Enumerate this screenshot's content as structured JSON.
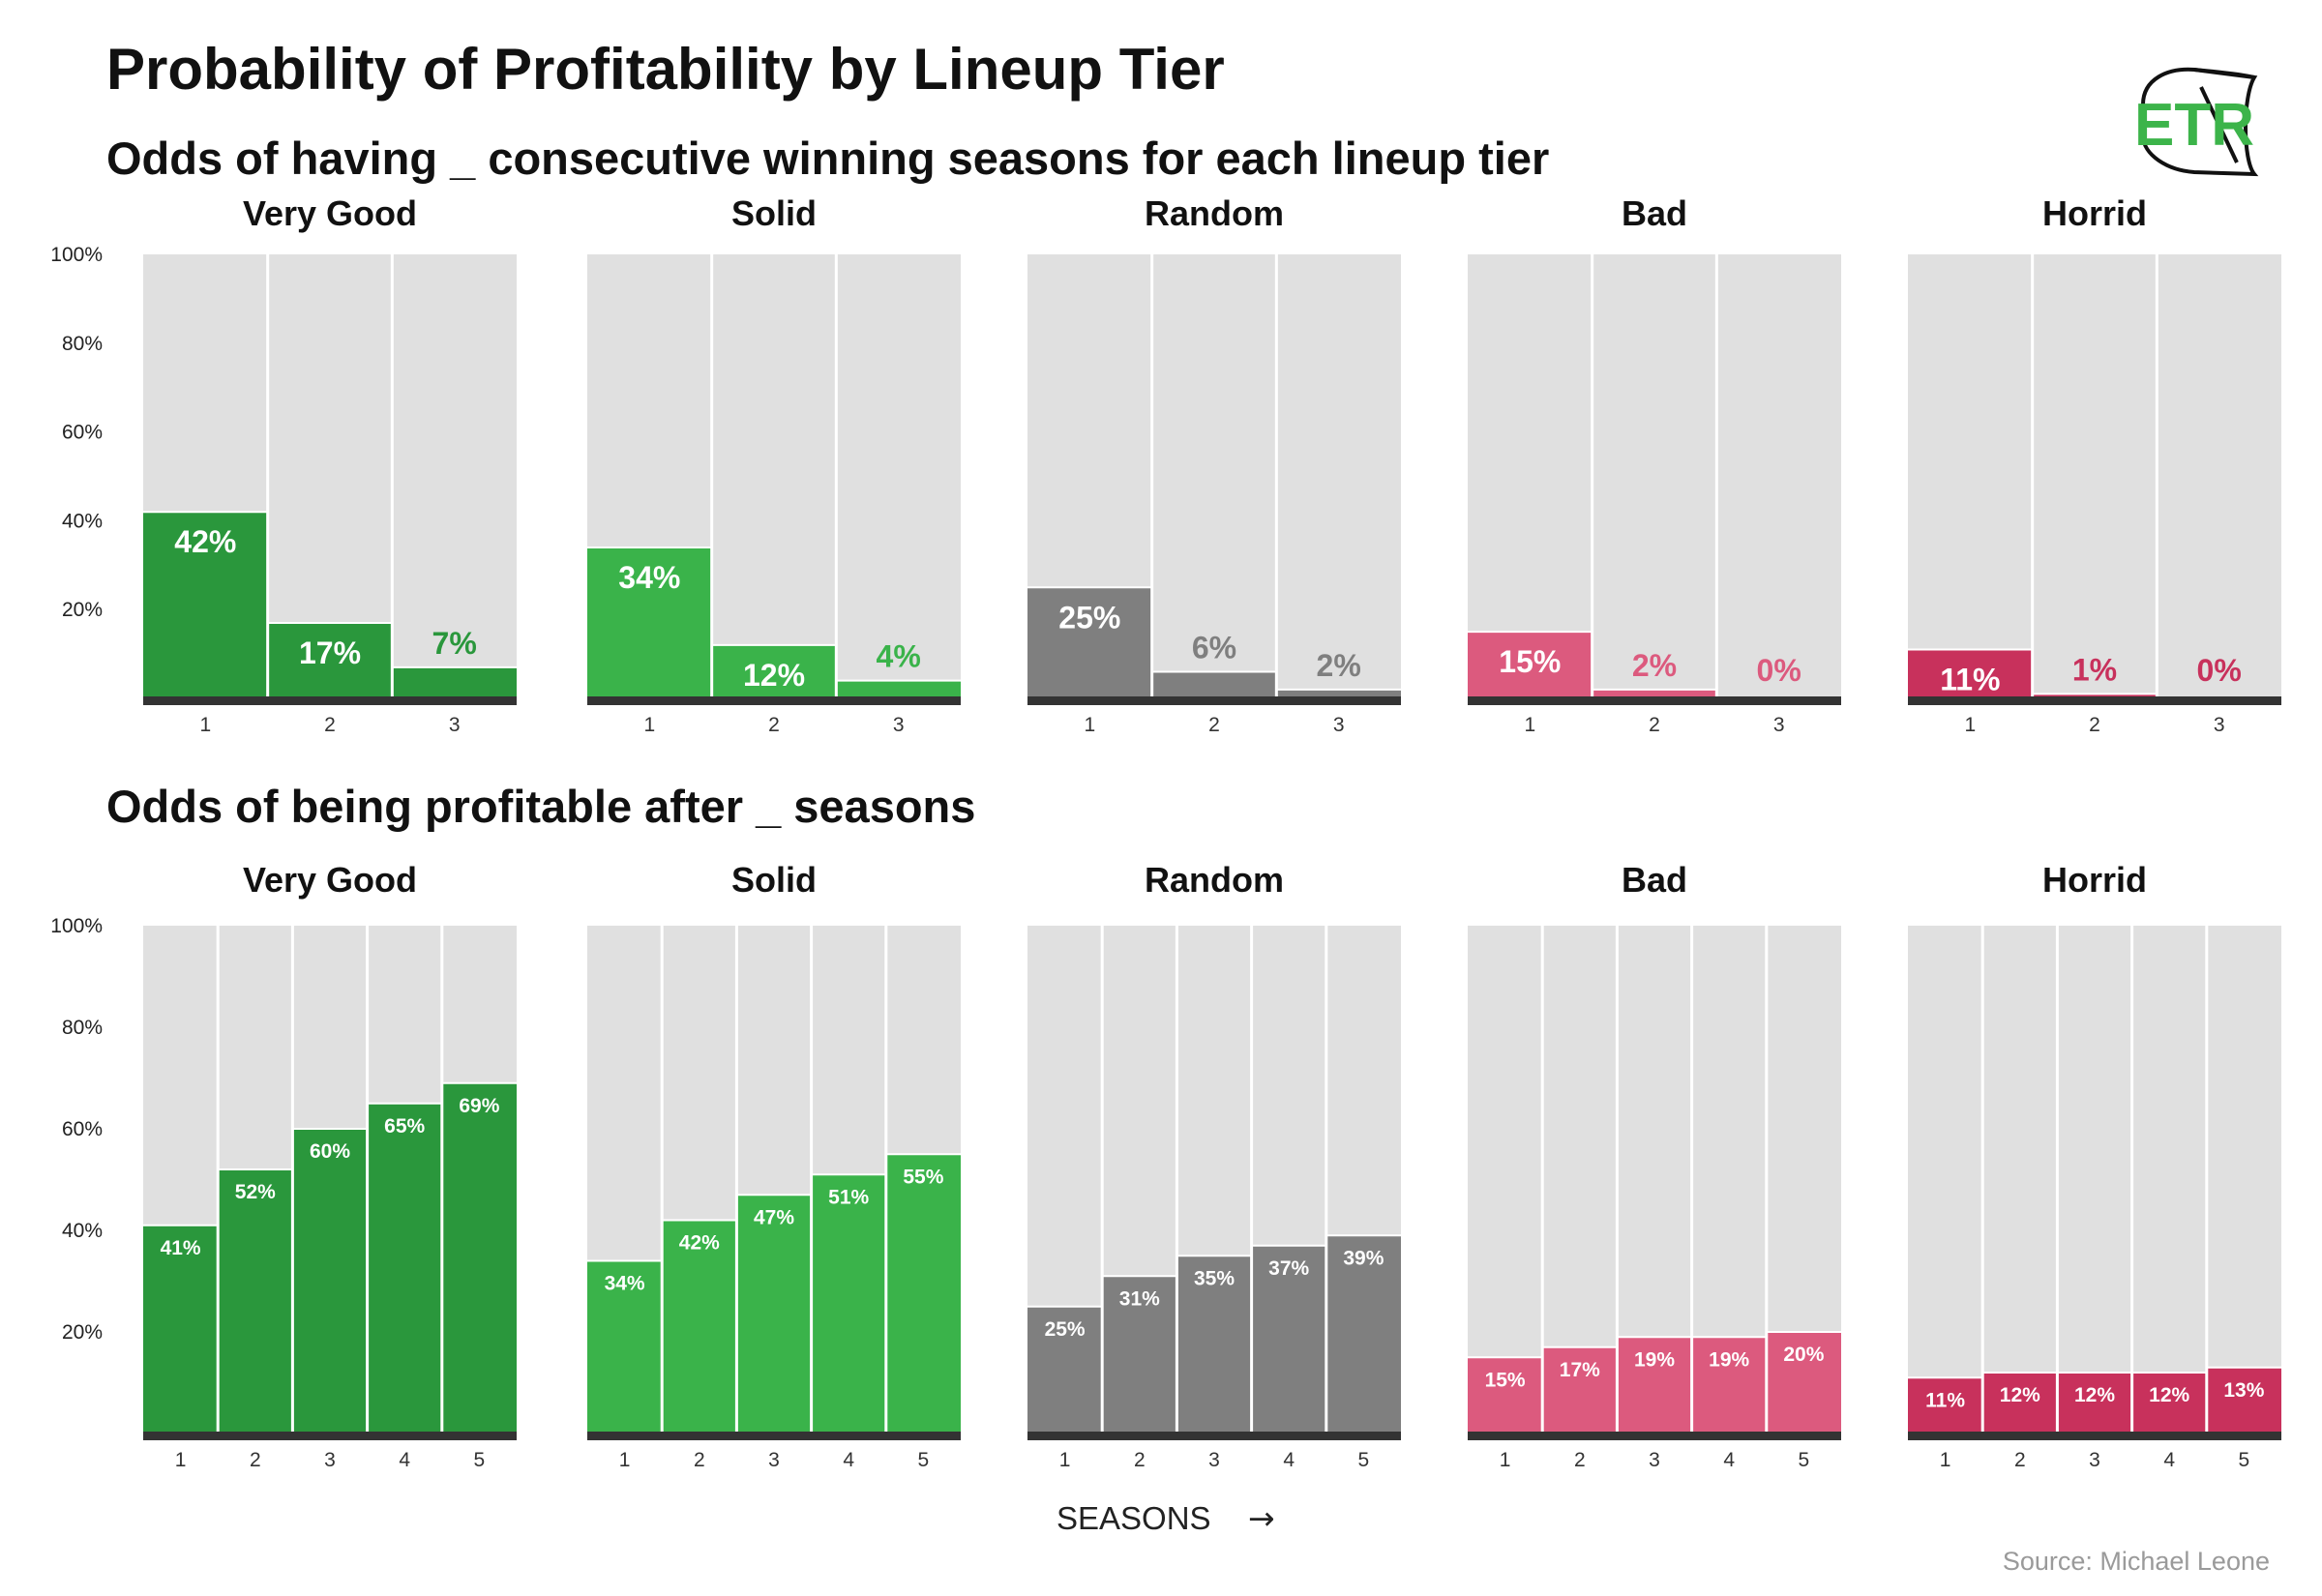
{
  "title": "Probability of Profitability by Lineup Tier",
  "source": "Source: Michael Leone",
  "logo": {
    "text": "ETR",
    "color": "#3cb44a"
  },
  "x_axis_label": "SEASONS",
  "x_axis_arrow": "→",
  "colors": {
    "Very Good": "#2a973c",
    "Solid": "#3ab34a",
    "Random": "#7f7f7f",
    "Bad": "#dc5a7e",
    "Horrid": "#c8315c",
    "background_bar": "#e0e0e0",
    "baseline": "#333333"
  },
  "chart_data": [
    {
      "type": "bar",
      "title": "Odds of having _ consecutive winning seasons for each lineup tier",
      "ylim": [
        0,
        100
      ],
      "yticks": [
        "20%",
        "40%",
        "60%",
        "80%",
        "100%"
      ],
      "categories": [
        "1",
        "2",
        "3"
      ],
      "series": [
        {
          "name": "Very Good",
          "values": [
            42,
            17,
            7
          ],
          "labels": [
            "42%",
            "17%",
            "7%"
          ]
        },
        {
          "name": "Solid",
          "values": [
            34,
            12,
            4
          ],
          "labels": [
            "34%",
            "12%",
            "4%"
          ]
        },
        {
          "name": "Random",
          "values": [
            25,
            6,
            2
          ],
          "labels": [
            "25%",
            "6%",
            "2%"
          ]
        },
        {
          "name": "Bad",
          "values": [
            15,
            2,
            0
          ],
          "labels": [
            "15%",
            "2%",
            "0%"
          ]
        },
        {
          "name": "Horrid",
          "values": [
            11,
            1,
            0
          ],
          "labels": [
            "11%",
            "1%",
            "0%"
          ]
        }
      ]
    },
    {
      "type": "bar",
      "title": "Odds of being profitable after _ seasons",
      "ylim": [
        0,
        100
      ],
      "yticks": [
        "20%",
        "40%",
        "60%",
        "80%",
        "100%"
      ],
      "categories": [
        "1",
        "2",
        "3",
        "4",
        "5"
      ],
      "series": [
        {
          "name": "Very Good",
          "values": [
            41,
            52,
            60,
            65,
            69
          ],
          "labels": [
            "41%",
            "52%",
            "60%",
            "65%",
            "69%"
          ]
        },
        {
          "name": "Solid",
          "values": [
            34,
            42,
            47,
            51,
            55
          ],
          "labels": [
            "34%",
            "42%",
            "47%",
            "51%",
            "55%"
          ]
        },
        {
          "name": "Random",
          "values": [
            25,
            31,
            35,
            37,
            39
          ],
          "labels": [
            "25%",
            "31%",
            "35%",
            "37%",
            "39%"
          ]
        },
        {
          "name": "Bad",
          "values": [
            15,
            17,
            19,
            19,
            20
          ],
          "labels": [
            "15%",
            "17%",
            "19%",
            "19%",
            "20%"
          ]
        },
        {
          "name": "Horrid",
          "values": [
            11,
            12,
            12,
            12,
            13
          ],
          "labels": [
            "11%",
            "12%",
            "12%",
            "12%",
            "13%"
          ]
        }
      ]
    }
  ]
}
